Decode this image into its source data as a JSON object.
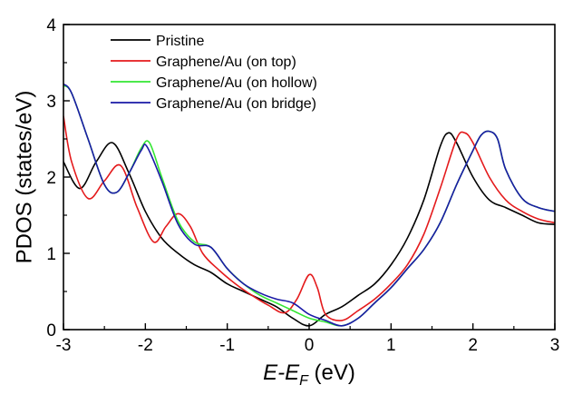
{
  "chart_data": {
    "type": "line",
    "title": "",
    "ylabel": "PDOS (states/eV)",
    "xlabel": {
      "prefix": "E-E",
      "subscript": "F",
      "suffix": " (eV)"
    },
    "xlim": [
      -3,
      3
    ],
    "ylim": [
      0,
      4
    ],
    "xticks": [
      "-3",
      "-2",
      "-1",
      "0",
      "1",
      "2",
      "3"
    ],
    "yticks": [
      "0",
      "1",
      "2",
      "3",
      "4"
    ],
    "grid": false,
    "legend": "top-left",
    "series": [
      {
        "name": "Pristine",
        "color": "#000000",
        "x": [
          -3.0,
          -2.8,
          -2.6,
          -2.4,
          -2.2,
          -2.0,
          -1.8,
          -1.6,
          -1.4,
          -1.2,
          -1.0,
          -0.8,
          -0.6,
          -0.4,
          -0.2,
          0.0,
          0.2,
          0.4,
          0.6,
          0.8,
          1.0,
          1.2,
          1.4,
          1.6,
          1.7,
          1.8,
          2.0,
          2.2,
          2.4,
          2.6,
          2.8,
          3.0
        ],
        "y": [
          2.2,
          1.85,
          2.2,
          2.45,
          2.05,
          1.55,
          1.2,
          1.0,
          0.85,
          0.75,
          0.6,
          0.5,
          0.4,
          0.3,
          0.15,
          0.05,
          0.2,
          0.3,
          0.45,
          0.6,
          0.85,
          1.2,
          1.7,
          2.4,
          2.58,
          2.45,
          2.0,
          1.7,
          1.6,
          1.5,
          1.4,
          1.38
        ]
      },
      {
        "name": "Graphene/Au (on top)",
        "color": "#e41a1c",
        "x": [
          -3.0,
          -2.9,
          -2.7,
          -2.5,
          -2.3,
          -2.1,
          -1.9,
          -1.75,
          -1.6,
          -1.45,
          -1.3,
          -1.1,
          -0.9,
          -0.7,
          -0.5,
          -0.3,
          -0.15,
          0.0,
          0.1,
          0.2,
          0.4,
          0.6,
          0.8,
          1.0,
          1.2,
          1.4,
          1.6,
          1.8,
          1.9,
          2.0,
          2.2,
          2.4,
          2.6,
          2.8,
          3.0
        ],
        "y": [
          2.8,
          2.2,
          1.72,
          1.95,
          2.15,
          1.6,
          1.15,
          1.35,
          1.52,
          1.35,
          1.0,
          0.78,
          0.6,
          0.45,
          0.32,
          0.22,
          0.4,
          0.72,
          0.55,
          0.2,
          0.12,
          0.25,
          0.4,
          0.6,
          0.85,
          1.25,
          1.85,
          2.5,
          2.58,
          2.45,
          2.0,
          1.7,
          1.55,
          1.45,
          1.4
        ]
      },
      {
        "name": "Graphene/Au (on hollow)",
        "color": "#33e633",
        "x": [
          -3.0,
          -2.9,
          -2.7,
          -2.5,
          -2.35,
          -2.2,
          -2.05,
          -1.95,
          -1.8,
          -1.6,
          -1.4,
          -1.2,
          -1.0,
          -0.8,
          -0.6,
          -0.4,
          -0.2,
          0.0,
          0.2,
          0.4,
          0.6,
          0.8,
          1.0,
          1.2,
          1.4,
          1.6,
          1.8,
          2.0,
          2.1,
          2.2,
          2.3,
          2.4,
          2.6,
          2.8,
          3.0
        ],
        "y": [
          3.2,
          3.1,
          2.5,
          1.9,
          1.8,
          2.05,
          2.38,
          2.45,
          2.0,
          1.42,
          1.15,
          1.08,
          0.8,
          0.6,
          0.45,
          0.35,
          0.25,
          0.15,
          0.1,
          0.05,
          0.15,
          0.35,
          0.55,
          0.8,
          1.05,
          1.4,
          1.9,
          2.35,
          2.55,
          2.6,
          2.5,
          2.1,
          1.72,
          1.6,
          1.55
        ]
      },
      {
        "name": "Graphene/Au (on bridge)",
        "color": "#1a1aa6",
        "x": [
          -3.0,
          -2.9,
          -2.7,
          -2.5,
          -2.35,
          -2.2,
          -2.05,
          -1.98,
          -1.8,
          -1.6,
          -1.4,
          -1.2,
          -1.0,
          -0.8,
          -0.6,
          -0.4,
          -0.2,
          0.0,
          0.2,
          0.4,
          0.6,
          0.8,
          1.0,
          1.2,
          1.4,
          1.6,
          1.8,
          2.0,
          2.1,
          2.2,
          2.3,
          2.4,
          2.6,
          2.8,
          3.0
        ],
        "y": [
          3.22,
          3.1,
          2.5,
          1.9,
          1.8,
          2.05,
          2.35,
          2.4,
          1.95,
          1.38,
          1.12,
          1.08,
          0.8,
          0.6,
          0.48,
          0.4,
          0.35,
          0.2,
          0.12,
          0.05,
          0.15,
          0.35,
          0.55,
          0.8,
          1.05,
          1.4,
          1.9,
          2.35,
          2.55,
          2.6,
          2.5,
          2.1,
          1.72,
          1.6,
          1.55
        ]
      }
    ]
  }
}
